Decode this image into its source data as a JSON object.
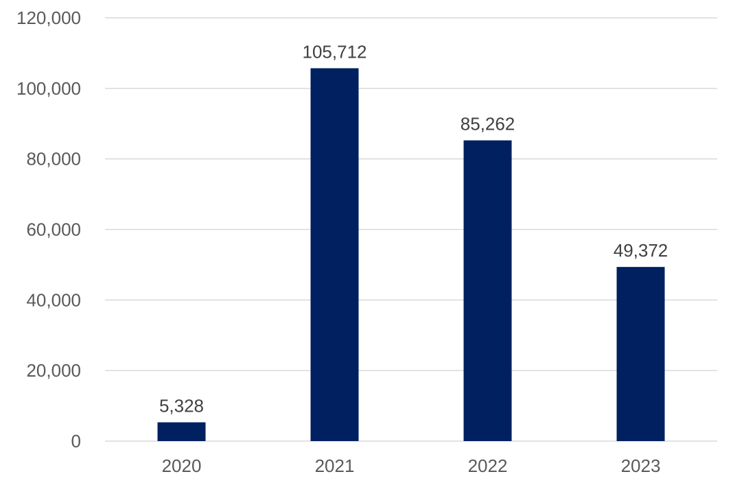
{
  "chart_data": {
    "type": "bar",
    "categories": [
      "2020",
      "2021",
      "2022",
      "2023"
    ],
    "values": [
      5328,
      105712,
      85262,
      49372
    ],
    "value_labels": [
      "5,328",
      "105,712",
      "85,262",
      "49,372"
    ],
    "title": "",
    "xlabel": "",
    "ylabel": "",
    "ylim": [
      0,
      120000
    ],
    "yticks": [
      0,
      20000,
      40000,
      60000,
      80000,
      100000,
      120000
    ],
    "ytick_labels": [
      "0",
      "20,000",
      "40,000",
      "60,000",
      "80,000",
      "100,000",
      "120,000"
    ],
    "grid": true,
    "legend": "none",
    "colors": {
      "bar": "#002060",
      "grid": "#d9d9d9",
      "tick_text": "#595959",
      "data_label_text": "#404040"
    }
  }
}
